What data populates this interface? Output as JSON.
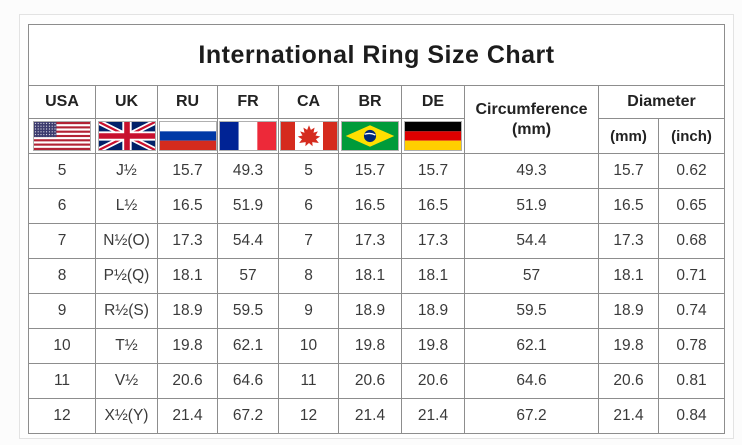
{
  "page": {
    "title": "International Ring Size Chart"
  },
  "header": {
    "countries": [
      "USA",
      "UK",
      "RU",
      "FR",
      "CA",
      "BR",
      "DE"
    ],
    "circumference_line1": "Circumference",
    "circumference_line2": "(mm)",
    "diameter_label": "Diameter",
    "diameter_sub": [
      "(mm)",
      "(inch)"
    ]
  },
  "colors": {
    "table_border": "#8d8d8d",
    "outer_frame": "#e3e3e3",
    "title_text": "#1c1c1c",
    "cell_text": "#3a3a3a"
  },
  "chart_data": {
    "type": "table",
    "title": "International Ring Size Chart",
    "columns": [
      "USA",
      "UK",
      "RU",
      "FR",
      "CA",
      "BR",
      "DE",
      "Circumference (mm)",
      "Diameter (mm)",
      "Diameter (inch)"
    ],
    "rows": [
      [
        "5",
        "J½",
        "15.7",
        "49.3",
        "5",
        "15.7",
        "15.7",
        "49.3",
        "15.7",
        "0.62"
      ],
      [
        "6",
        "L½",
        "16.5",
        "51.9",
        "6",
        "16.5",
        "16.5",
        "51.9",
        "16.5",
        "0.65"
      ],
      [
        "7",
        "N½(O)",
        "17.3",
        "54.4",
        "7",
        "17.3",
        "17.3",
        "54.4",
        "17.3",
        "0.68"
      ],
      [
        "8",
        "P½(Q)",
        "18.1",
        "57",
        "8",
        "18.1",
        "18.1",
        "57",
        "18.1",
        "0.71"
      ],
      [
        "9",
        "R½(S)",
        "18.9",
        "59.5",
        "9",
        "18.9",
        "18.9",
        "59.5",
        "18.9",
        "0.74"
      ],
      [
        "10",
        "T½",
        "19.8",
        "62.1",
        "10",
        "19.8",
        "19.8",
        "62.1",
        "19.8",
        "0.78"
      ],
      [
        "11",
        "V½",
        "20.6",
        "64.6",
        "11",
        "20.6",
        "20.6",
        "64.6",
        "20.6",
        "0.81"
      ],
      [
        "12",
        "X½(Y)",
        "21.4",
        "67.2",
        "12",
        "21.4",
        "21.4",
        "67.2",
        "21.4",
        "0.84"
      ]
    ]
  }
}
